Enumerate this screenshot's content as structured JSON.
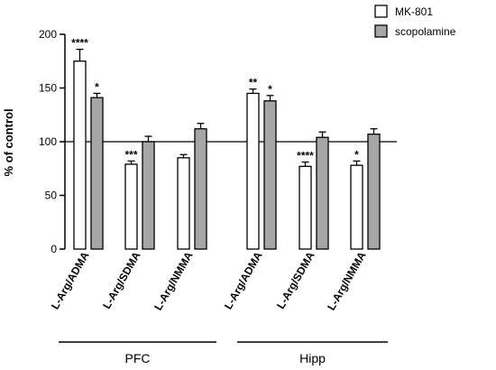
{
  "chart_data": {
    "type": "bar",
    "ylabel": "% of control",
    "ylim": [
      0,
      200
    ],
    "yticks": [
      0,
      50,
      100,
      150,
      200
    ],
    "reference_line": 100,
    "legend": {
      "placement": "top-right"
    },
    "groups": [
      {
        "label": "PFC",
        "categories": [
          "L-Arg/ADMA",
          "L-Arg/SDMA",
          "L-Arg/NMMA"
        ]
      },
      {
        "label": "Hipp",
        "categories": [
          "L-Arg/ADMA",
          "L-Arg/SDMA",
          "L-Arg/NMMA"
        ]
      }
    ],
    "series": [
      {
        "name": "MK-801",
        "color": "#ffffff",
        "values": [
          175,
          79,
          85,
          145,
          77,
          78
        ],
        "errors": [
          11,
          3,
          3,
          4,
          4,
          4
        ],
        "significance": [
          "****",
          "***",
          "",
          "**",
          "****",
          "*"
        ]
      },
      {
        "name": "scopolamine",
        "color": "#a6a6a6",
        "values": [
          141,
          100,
          112,
          138,
          104,
          107
        ],
        "errors": [
          4,
          5,
          5,
          5,
          5,
          5
        ],
        "significance": [
          "*",
          "",
          "",
          "*",
          "",
          ""
        ]
      }
    ]
  }
}
